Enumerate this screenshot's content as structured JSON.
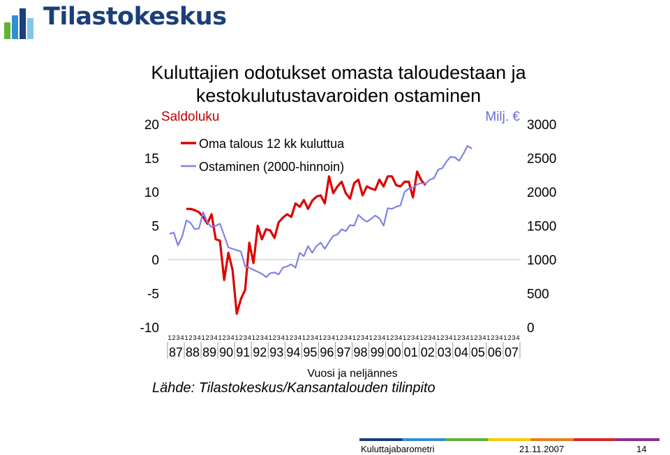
{
  "header": {
    "logo_text": "Tilastokeskus",
    "logo_icon": "tilastokeskus-logo-icon"
  },
  "chart_data": {
    "type": "line",
    "title": "Kuluttajien odotukset omasta taloudestaan ja kestokulutustavaroiden ostaminen",
    "left_axis_label": "Saldoluku",
    "right_axis_label": "Milj. €",
    "left_ylim": [
      -10,
      20
    ],
    "right_ylim": [
      0,
      3000
    ],
    "left_ticks": [
      "20",
      "15",
      "10",
      "5",
      "0",
      "-5",
      "-10"
    ],
    "right_ticks": [
      "3000",
      "2500",
      "2000",
      "1500",
      "1000",
      "500",
      "0"
    ],
    "quarter_tick_labels": [
      "1",
      "2",
      "3",
      "4"
    ],
    "year_labels": [
      "87",
      "88",
      "89",
      "90",
      "91",
      "92",
      "93",
      "94",
      "95",
      "96",
      "97",
      "98",
      "99",
      "00",
      "01",
      "02",
      "03",
      "04",
      "05",
      "06",
      "07"
    ],
    "xlabel": "Vuosi ja neljännes",
    "source": "Lähde: Tilastokeskus/Kansantalouden tilinpito",
    "legend_position": "top-left",
    "grid": false,
    "series": [
      {
        "name": "Oma talous 12 kk kuluttua",
        "axis": "left",
        "color": "#dd0000",
        "start_index": 4,
        "values": [
          7.5,
          7.5,
          7.3,
          7.0,
          6.3,
          5.3,
          6.7,
          3.0,
          2.8,
          -3.0,
          1.0,
          -1.5,
          -8.0,
          -5.8,
          -4.5,
          2.5,
          -0.5,
          5.0,
          3.0,
          4.5,
          4.3,
          3.2,
          5.5,
          6.2,
          6.7,
          6.3,
          8.3,
          7.8,
          8.8,
          7.5,
          8.7,
          9.3,
          9.5,
          8.3,
          12.3,
          9.8,
          10.8,
          11.5,
          9.8,
          9.0,
          11.3,
          11.8,
          9.5,
          10.8,
          10.5,
          10.3,
          11.8,
          10.8,
          12.3,
          12.3,
          11.0,
          10.8,
          11.5,
          11.5,
          9.2,
          13.0,
          11.7,
          11.0
        ]
      },
      {
        "name": "Ostaminen (2000-hinnoin)",
        "axis": "right",
        "color": "#8080e8",
        "start_index": 0,
        "values": [
          1380,
          1400,
          1210,
          1340,
          1580,
          1540,
          1450,
          1460,
          1700,
          1550,
          1480,
          1500,
          1530,
          1360,
          1180,
          1160,
          1140,
          1120,
          900,
          880,
          850,
          820,
          790,
          740,
          800,
          810,
          780,
          880,
          900,
          930,
          880,
          1100,
          1050,
          1200,
          1100,
          1200,
          1250,
          1160,
          1260,
          1350,
          1370,
          1450,
          1420,
          1510,
          1500,
          1660,
          1600,
          1560,
          1600,
          1650,
          1610,
          1500,
          1760,
          1750,
          1780,
          1800,
          2000,
          2050,
          2060,
          2110,
          2130,
          2120,
          2180,
          2200,
          2330,
          2350,
          2450,
          2520,
          2510,
          2460,
          2560,
          2680,
          2640
        ]
      }
    ]
  },
  "footer": {
    "label": "Kuluttajabarometri",
    "date": "21.11.2007",
    "page": "14",
    "strip_colors": [
      "#1a3f7a",
      "#2e8ed6",
      "#62b232",
      "#f7c800",
      "#e87d1e",
      "#d8232a",
      "#8b2b8e"
    ]
  }
}
